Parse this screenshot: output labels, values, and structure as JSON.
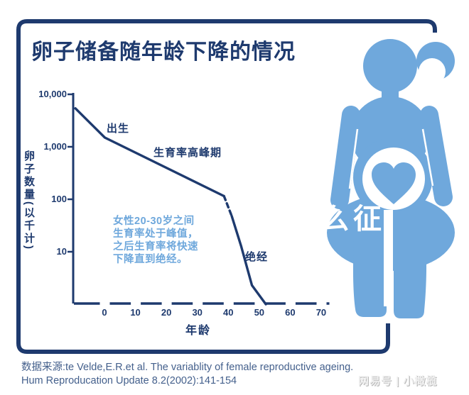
{
  "page": {
    "title": "卵子储备随年龄下降的情况",
    "source_line1": "数据来源:te Velde,E.R.et al. The variablity of female reproductive ageing.",
    "source_line2": "Hum Reproducation Update 8.2(2002):141-154",
    "watermark_bottom": "网易号 | 小橄榄",
    "watermark_overlay": "么征"
  },
  "colors": {
    "navy": "#1e3a6e",
    "light_blue": "#6fa8dc",
    "source_text": "#44608c"
  },
  "chart_data": {
    "type": "line",
    "title": "卵子储备随年龄下降的情况",
    "xlabel": "年龄",
    "ylabel": "卵子数量(以千计)",
    "y_scale": "log",
    "ylim": [
      1,
      10000
    ],
    "grid": false,
    "legend": "none",
    "y_ticks": [
      "10,000",
      "1,000",
      "100",
      "10"
    ],
    "x_ticks": [
      0,
      10,
      20,
      30,
      40,
      50,
      60,
      70
    ],
    "annotations": {
      "birth": "出生",
      "peak": "生育率高峰期",
      "menopause": "绝经",
      "note_lines": [
        "女性20-30岁之间",
        "生育率处于峰值，",
        "之后生育率将快速",
        "下降直到绝经。"
      ]
    },
    "series": [
      {
        "name": "egg-reserve-prenatal-to-38",
        "style": "solid",
        "points": [
          [
            -9.5,
            5400
          ],
          [
            0,
            1500
          ],
          [
            38.5,
            115
          ]
        ]
      },
      {
        "name": "egg-reserve-38-to-41-dashed",
        "style": "dashed",
        "points": [
          [
            38.5,
            115
          ],
          [
            41,
            48
          ]
        ]
      },
      {
        "name": "egg-reserve-41-to-menopause",
        "style": "solid",
        "points": [
          [
            41,
            48
          ],
          [
            44,
            13
          ],
          [
            47.5,
            2.3
          ],
          [
            52,
            1
          ]
        ]
      }
    ]
  }
}
